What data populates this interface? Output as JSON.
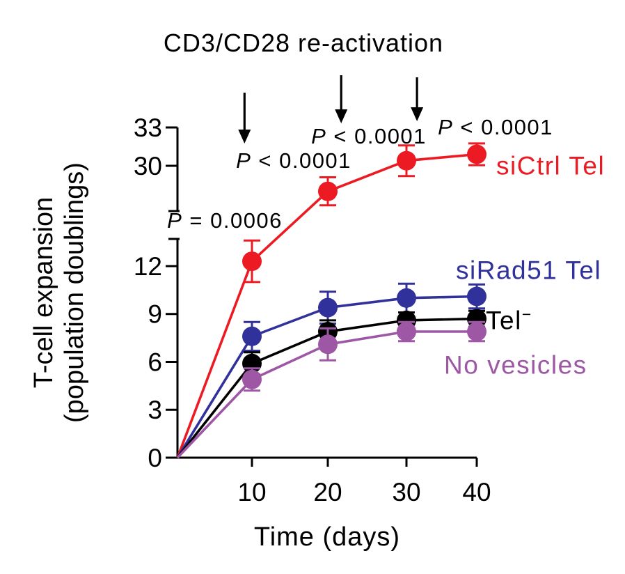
{
  "chart_data": {
    "type": "line",
    "title": "CD3/CD28 re-activation",
    "xlabel": "Time (days)",
    "ylabel_line1": "T-cell expansion",
    "ylabel_line2": "(population doublings)",
    "x_range": [
      0,
      40
    ],
    "x_ticks": [
      10,
      20,
      30,
      40
    ],
    "y_axis_break": true,
    "y_ticks_lower": [
      0,
      3,
      6,
      9,
      12
    ],
    "y_ticks_upper": [
      30,
      33
    ],
    "y_lower_range": [
      0,
      13.7
    ],
    "y_upper_range": [
      26.4,
      33
    ],
    "grid": false,
    "legend_position": "right",
    "x": [
      0,
      10,
      20,
      30,
      40
    ],
    "series": [
      {
        "name": "siCtrl Tel",
        "color": "#EC1B23",
        "values": [
          0,
          12.3,
          28.0,
          30.4,
          30.9
        ],
        "errors": [
          0,
          1.3,
          1.1,
          1.2,
          0.85
        ]
      },
      {
        "name": "siRad51 Tel",
        "color": "#30319A",
        "values": [
          0,
          7.6,
          9.4,
          10.0,
          10.1
        ],
        "errors": [
          0,
          0.9,
          1.0,
          0.9,
          0.75
        ]
      },
      {
        "name": "Tel−",
        "color": "#000000",
        "values": [
          0,
          5.9,
          7.9,
          8.6,
          8.7
        ],
        "errors": [
          0,
          0.7,
          0.7,
          0.5,
          0.5
        ]
      },
      {
        "name": "No vesicles",
        "color": "#9D57A5",
        "values": [
          0,
          4.9,
          7.1,
          7.9,
          7.9
        ],
        "errors": [
          0,
          0.7,
          1.0,
          0.6,
          0.6
        ]
      }
    ],
    "annotations": {
      "p_labels": [
        "P = 0.0006",
        "P < 0.0001",
        "P < 0.0001",
        "P < 0.0001"
      ],
      "reactivation_arrow_days": [
        9,
        21.7,
        31.5
      ]
    },
    "legend": [
      {
        "base": "siCtrl Tel",
        "sup": ""
      },
      {
        "base": "siRad51 Tel",
        "sup": ""
      },
      {
        "base": "Tel",
        "sup": "−"
      },
      {
        "base": "No vesicles",
        "sup": ""
      }
    ]
  }
}
